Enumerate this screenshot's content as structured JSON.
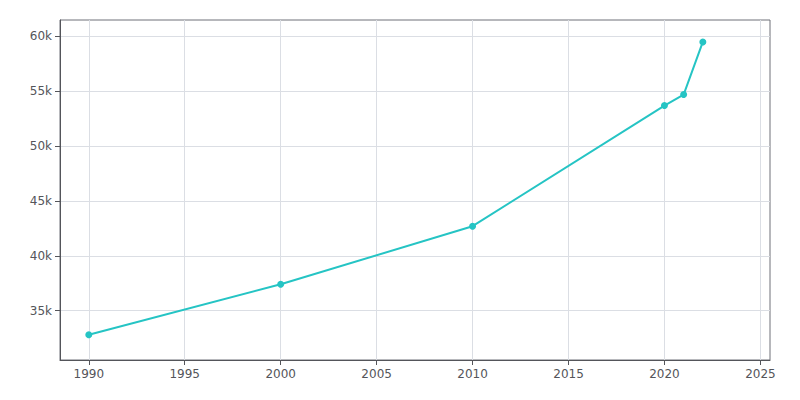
{
  "chart_data": {
    "type": "line",
    "x": [
      1990,
      2000,
      2010,
      2020,
      2021,
      2022
    ],
    "values": [
      32800,
      37400,
      42700,
      53700,
      54700,
      59500
    ],
    "color": "#25c4c4",
    "marker": "circle",
    "xlim": [
      1988.5,
      2025.5
    ],
    "xticks": [
      1990,
      1995,
      2000,
      2005,
      2010,
      2015,
      2020,
      2025
    ],
    "ylim": [
      30500,
      61500
    ],
    "yticks": [
      {
        "value": 35000,
        "label": "35k"
      },
      {
        "value": 40000,
        "label": "40k"
      },
      {
        "value": 45000,
        "label": "45k"
      },
      {
        "value": 50000,
        "label": "50k"
      },
      {
        "value": 55000,
        "label": "55k"
      },
      {
        "value": 60000,
        "label": "60k"
      }
    ],
    "grid": true
  }
}
